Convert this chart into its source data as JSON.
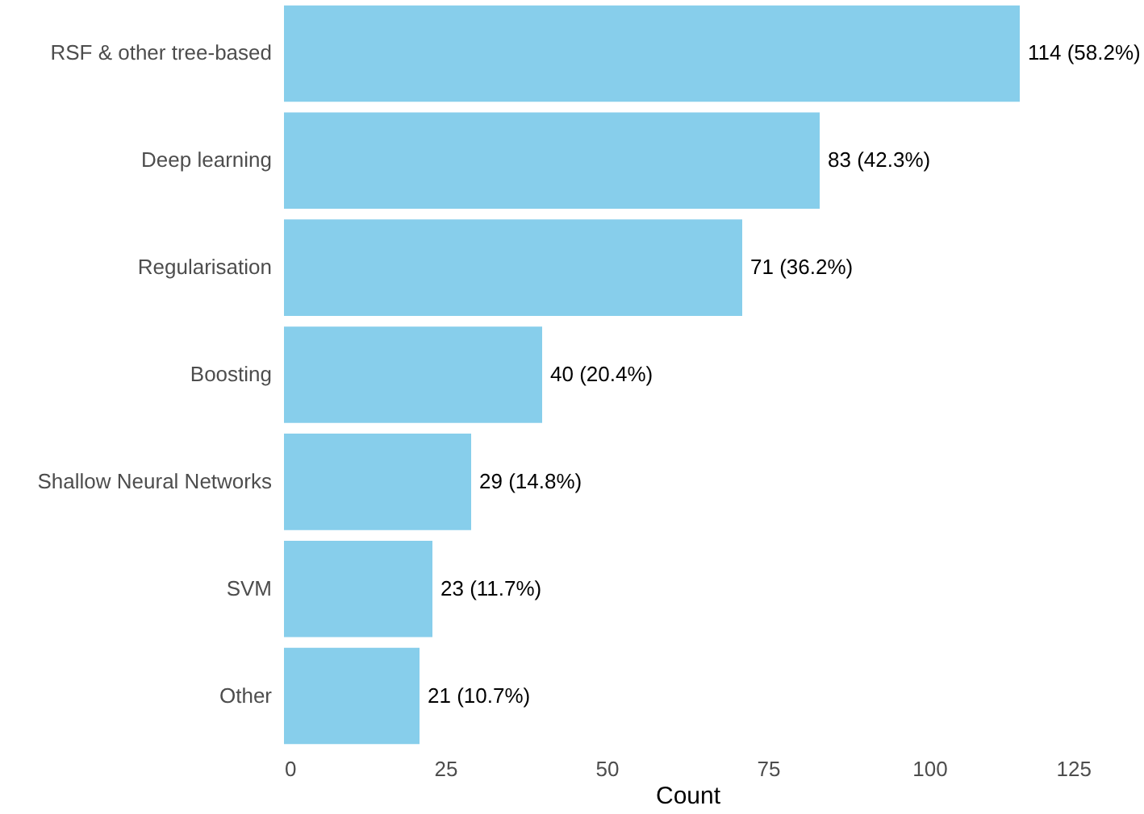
{
  "chart_data": {
    "type": "bar",
    "orientation": "horizontal",
    "xlabel": "Count",
    "categories": [
      "RSF & other tree-based",
      "Deep learning",
      "Regularisation",
      "Boosting",
      "Shallow Neural Networks",
      "SVM",
      "Other"
    ],
    "values": [
      114,
      83,
      71,
      40,
      29,
      23,
      21
    ],
    "value_labels": [
      "114 (58.2%)",
      "83 (42.3%)",
      "71 (36.2%)",
      "40 (20.4%)",
      "29 (14.8%)",
      "23 (11.7%)",
      "21 (10.7%)"
    ],
    "color": "#87ceeb",
    "xlim": [
      0,
      125
    ],
    "xticks": [
      0,
      25,
      50,
      75,
      100,
      125
    ]
  }
}
